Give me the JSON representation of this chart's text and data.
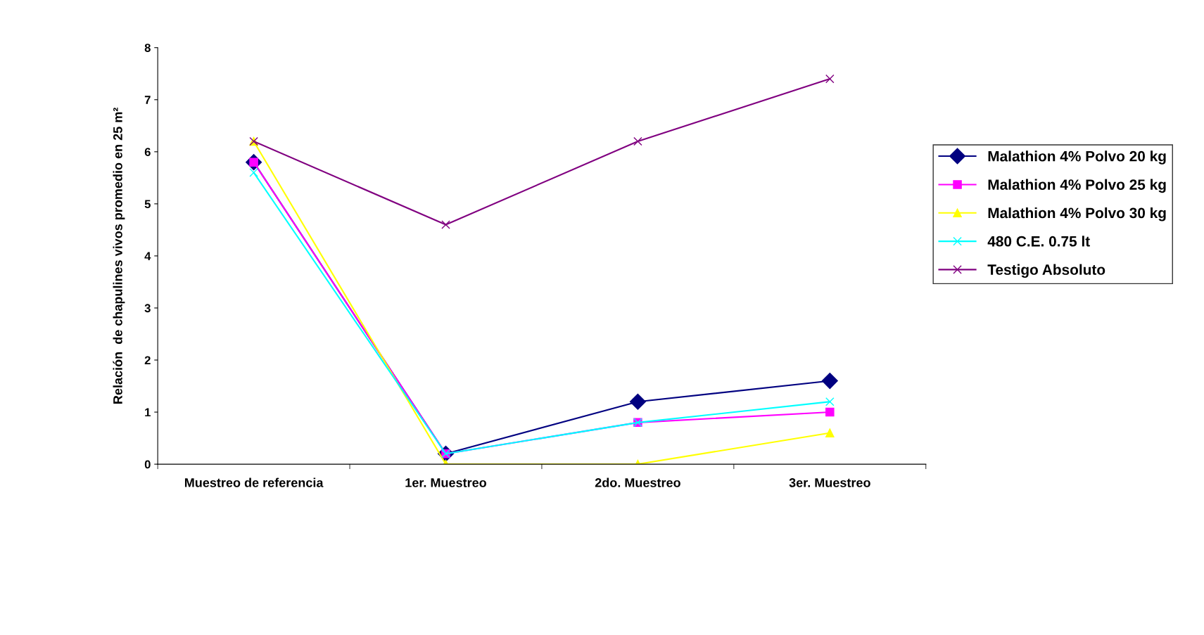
{
  "chart_data": {
    "type": "line",
    "ylabel": "Relación  de chapulines vivos promedio en 25 m²",
    "categories": [
      "Muestreo de referencia",
      "1er. Muestreo",
      "2do. Muestreo",
      "3er. Muestreo"
    ],
    "ylim": [
      0,
      8
    ],
    "yticks": [
      0,
      1,
      2,
      3,
      4,
      5,
      6,
      7,
      8
    ],
    "grid": false,
    "legend": "right",
    "series": [
      {
        "name": "Malathion 4% Polvo 20 kg",
        "color": "#000080",
        "marker": "diamond",
        "values": [
          5.8,
          0.2,
          1.2,
          1.6
        ]
      },
      {
        "name": "Malathion 4% Polvo 25 kg",
        "color": "#ff00ff",
        "marker": "square",
        "values": [
          5.8,
          0.2,
          0.8,
          1.0
        ]
      },
      {
        "name": "Malathion 4% Polvo 30 kg",
        "color": "#ffff00",
        "marker": "triangle",
        "values": [
          6.2,
          0,
          0,
          0.6
        ]
      },
      {
        "name": "480 C.E. 0.75 lt",
        "color": "#00ffff",
        "marker": "cross",
        "values": [
          5.6,
          0.2,
          0.8,
          1.2
        ]
      },
      {
        "name": "Testigo Absoluto",
        "color": "#800080",
        "marker": "cross",
        "values": [
          6.2,
          4.6,
          6.2,
          7.4
        ]
      }
    ]
  }
}
